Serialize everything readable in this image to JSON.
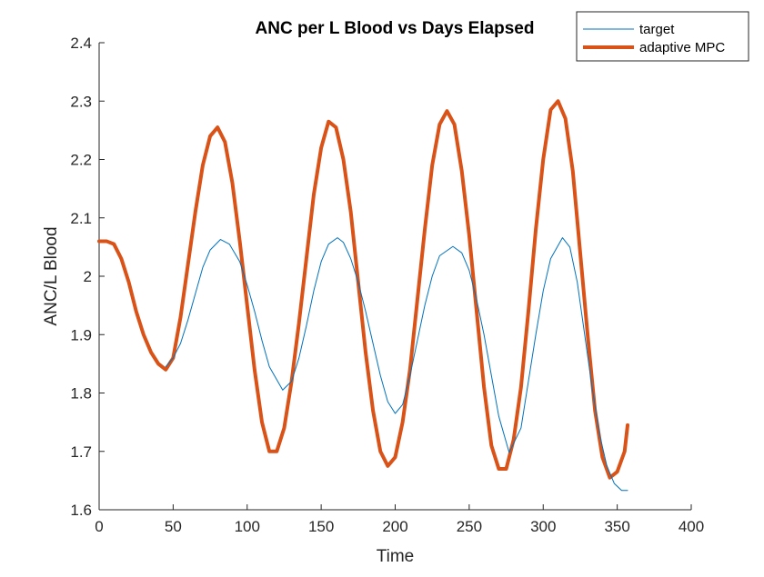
{
  "chart_data": {
    "type": "line",
    "title": "ANC per L Blood vs Days Elapsed",
    "xlabel": "Time",
    "ylabel": "ANC/L Blood",
    "xlim": [
      0,
      400
    ],
    "ylim": [
      1.6,
      2.4
    ],
    "xticks": [
      "0",
      "50",
      "100",
      "150",
      "200",
      "250",
      "300",
      "350",
      "400"
    ],
    "yticks": [
      "1.6",
      "1.7",
      "1.8",
      "1.9",
      "2",
      "2.1",
      "2.2",
      "2.3",
      "2.4"
    ],
    "grid": false,
    "legend_position": "top-right",
    "series": [
      {
        "name": "target",
        "color": "#0072BD",
        "width": "thin",
        "x": [
          45,
          50,
          55,
          60,
          65,
          70,
          75,
          82,
          88,
          95,
          100,
          105,
          110,
          115,
          124,
          130,
          135,
          140,
          145,
          150,
          155,
          161,
          165,
          170,
          175,
          180,
          185,
          190,
          195,
          200,
          205,
          210,
          215,
          220,
          225,
          230,
          239,
          245,
          250,
          255,
          260,
          265,
          270,
          277,
          285,
          290,
          295,
          300,
          305,
          313,
          318,
          323,
          328,
          333,
          338,
          343,
          348,
          353,
          357
        ],
        "y": [
          1.845,
          1.86,
          1.885,
          1.925,
          1.97,
          2.015,
          2.045,
          2.063,
          2.055,
          2.025,
          1.985,
          1.94,
          1.89,
          1.845,
          1.805,
          1.82,
          1.86,
          1.915,
          1.975,
          2.025,
          2.055,
          2.066,
          2.058,
          2.03,
          1.99,
          1.94,
          1.885,
          1.83,
          1.785,
          1.765,
          1.78,
          1.83,
          1.89,
          1.95,
          2.0,
          2.035,
          2.051,
          2.04,
          2.01,
          1.96,
          1.9,
          1.83,
          1.76,
          1.698,
          1.74,
          1.82,
          1.9,
          1.975,
          2.03,
          2.066,
          2.05,
          1.99,
          1.9,
          1.81,
          1.73,
          1.675,
          1.645,
          1.633,
          1.633
        ]
      },
      {
        "name": "adaptive MPC",
        "color": "#D95319",
        "width": "thick",
        "x": [
          0,
          5,
          10,
          15,
          20,
          25,
          30,
          35,
          40,
          45,
          50,
          55,
          60,
          65,
          70,
          75,
          80,
          85,
          90,
          95,
          100,
          105,
          110,
          115,
          120,
          125,
          130,
          135,
          140,
          145,
          150,
          155,
          160,
          165,
          170,
          175,
          180,
          185,
          190,
          195,
          200,
          205,
          210,
          215,
          220,
          225,
          230,
          235,
          240,
          245,
          250,
          255,
          260,
          265,
          270,
          275,
          280,
          285,
          290,
          295,
          300,
          305,
          310,
          315,
          320,
          325,
          330,
          335,
          340,
          345,
          350,
          355,
          357
        ],
        "y": [
          2.06,
          2.06,
          2.055,
          2.03,
          1.99,
          1.94,
          1.9,
          1.87,
          1.85,
          1.84,
          1.86,
          1.93,
          2.02,
          2.11,
          2.19,
          2.24,
          2.255,
          2.23,
          2.16,
          2.06,
          1.95,
          1.84,
          1.75,
          1.7,
          1.7,
          1.74,
          1.82,
          1.92,
          2.03,
          2.14,
          2.22,
          2.265,
          2.255,
          2.2,
          2.11,
          1.99,
          1.87,
          1.77,
          1.7,
          1.675,
          1.69,
          1.75,
          1.84,
          1.96,
          2.08,
          2.19,
          2.26,
          2.283,
          2.26,
          2.18,
          2.07,
          1.94,
          1.81,
          1.71,
          1.67,
          1.67,
          1.72,
          1.81,
          1.94,
          2.08,
          2.2,
          2.285,
          2.3,
          2.27,
          2.18,
          2.04,
          1.9,
          1.77,
          1.69,
          1.655,
          1.665,
          1.7,
          1.745
        ]
      }
    ]
  }
}
